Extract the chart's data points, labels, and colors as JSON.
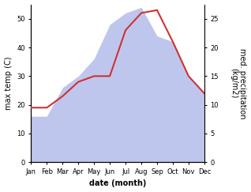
{
  "months": [
    "Jan",
    "Feb",
    "Mar",
    "Apr",
    "May",
    "Jun",
    "Jul",
    "Aug",
    "Sep",
    "Oct",
    "Nov",
    "Dec"
  ],
  "temp": [
    19,
    19,
    23,
    28,
    30,
    30,
    46,
    52,
    53,
    42,
    30,
    24
  ],
  "precip": [
    8,
    8,
    13,
    15,
    18,
    24,
    26,
    27,
    22,
    21,
    15,
    12
  ],
  "xlabel": "date (month)",
  "ylabel_left": "max temp (C)",
  "ylabel_right": "med. precipitation\n(kg/m2)",
  "ylim_left": [
    0,
    55
  ],
  "ylim_right": [
    0,
    27.5
  ],
  "yticks_left": [
    0,
    10,
    20,
    30,
    40,
    50
  ],
  "yticks_right": [
    0,
    5,
    10,
    15,
    20,
    25
  ],
  "line_color": "#cc3333",
  "fill_color": "#aab4e8",
  "fill_alpha": 0.75,
  "bg_color": "#ffffff",
  "line_width": 1.5,
  "xlabel_fontsize": 7,
  "ylabel_fontsize": 7,
  "tick_fontsize": 6,
  "xlabel_bold": true
}
